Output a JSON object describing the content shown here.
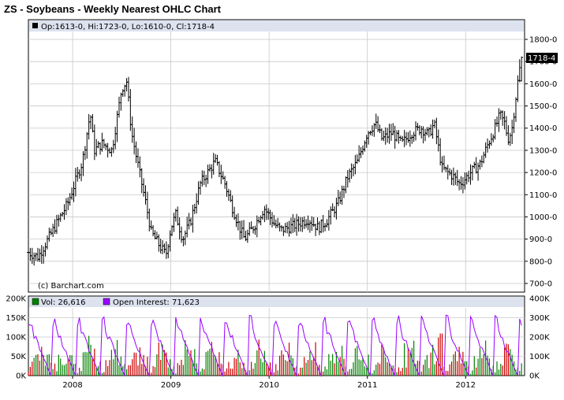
{
  "title": "ZS - Soybeans - Weekly Nearest OHLC Chart",
  "legend": {
    "ohlc": "Op:1613-0, Hi:1723-0, Lo:1610-0, Cl:1718-4",
    "volume": "Vol: 26,616",
    "open_interest": "Open Interest: 71,623"
  },
  "copyright": "(c) Barchart.com",
  "last_price_label": "1718-4",
  "colors": {
    "panel_border": "#000000",
    "header_bg": "#dde2ef",
    "grid": "#c8c8c8",
    "bars": "#000000",
    "volume_up": "#008000",
    "volume_down": "#cc0000",
    "open_interest": "#9900ff",
    "price_tag_bg": "#000000",
    "price_tag_text": "#ffffff"
  },
  "chart_data": [
    {
      "type": "ohlc",
      "title": "ZS - Soybeans - Weekly Nearest OHLC Chart",
      "ylim": [
        700,
        1800
      ],
      "y_ticks": [
        "700-0",
        "800-0",
        "900-0",
        "1000-0",
        "1100-0",
        "1200-0",
        "1300-0",
        "1400-0",
        "1500-0",
        "1600-0",
        "1700-0",
        "1800-0"
      ],
      "x_ticks": [
        "2008",
        "2009",
        "2010",
        "2011",
        "2012"
      ],
      "grid": true,
      "legend": "top-left",
      "last": {
        "open": 1613,
        "high": 1723,
        "low": 1610,
        "close": 1718.5
      },
      "close_anchors": [
        {
          "t": 2007.55,
          "v": 840
        },
        {
          "t": 2007.65,
          "v": 820
        },
        {
          "t": 2007.8,
          "v": 940
        },
        {
          "t": 2007.95,
          "v": 1060
        },
        {
          "t": 2008.1,
          "v": 1250
        },
        {
          "t": 2008.18,
          "v": 1470
        },
        {
          "t": 2008.22,
          "v": 1300
        },
        {
          "t": 2008.3,
          "v": 1330
        },
        {
          "t": 2008.4,
          "v": 1300
        },
        {
          "t": 2008.5,
          "v": 1580
        },
        {
          "t": 2008.55,
          "v": 1610
        },
        {
          "t": 2008.6,
          "v": 1380
        },
        {
          "t": 2008.68,
          "v": 1200
        },
        {
          "t": 2008.75,
          "v": 1050
        },
        {
          "t": 2008.8,
          "v": 930
        },
        {
          "t": 2008.9,
          "v": 860
        },
        {
          "t": 2008.95,
          "v": 830
        },
        {
          "t": 2009.0,
          "v": 950
        },
        {
          "t": 2009.05,
          "v": 1010
        },
        {
          "t": 2009.12,
          "v": 900
        },
        {
          "t": 2009.2,
          "v": 980
        },
        {
          "t": 2009.3,
          "v": 1150
        },
        {
          "t": 2009.45,
          "v": 1250
        },
        {
          "t": 2009.55,
          "v": 1150
        },
        {
          "t": 2009.62,
          "v": 1050
        },
        {
          "t": 2009.7,
          "v": 950
        },
        {
          "t": 2009.75,
          "v": 900
        },
        {
          "t": 2009.85,
          "v": 960
        },
        {
          "t": 2009.95,
          "v": 1040
        },
        {
          "t": 2010.05,
          "v": 970
        },
        {
          "t": 2010.12,
          "v": 940
        },
        {
          "t": 2010.25,
          "v": 960
        },
        {
          "t": 2010.4,
          "v": 990
        },
        {
          "t": 2010.5,
          "v": 950
        },
        {
          "t": 2010.58,
          "v": 980
        },
        {
          "t": 2010.7,
          "v": 1060
        },
        {
          "t": 2010.8,
          "v": 1180
        },
        {
          "t": 2010.9,
          "v": 1250
        },
        {
          "t": 2011.0,
          "v": 1380
        },
        {
          "t": 2011.08,
          "v": 1420
        },
        {
          "t": 2011.15,
          "v": 1350
        },
        {
          "t": 2011.25,
          "v": 1380
        },
        {
          "t": 2011.35,
          "v": 1330
        },
        {
          "t": 2011.45,
          "v": 1380
        },
        {
          "t": 2011.55,
          "v": 1400
        },
        {
          "t": 2011.62,
          "v": 1370
        },
        {
          "t": 2011.68,
          "v": 1420
        },
        {
          "t": 2011.72,
          "v": 1320
        },
        {
          "t": 2011.76,
          "v": 1220
        },
        {
          "t": 2011.82,
          "v": 1200
        },
        {
          "t": 2011.88,
          "v": 1180
        },
        {
          "t": 2011.93,
          "v": 1150
        },
        {
          "t": 2011.97,
          "v": 1160
        },
        {
          "t": 2012.05,
          "v": 1200
        },
        {
          "t": 2012.15,
          "v": 1240
        },
        {
          "t": 2012.22,
          "v": 1320
        },
        {
          "t": 2012.3,
          "v": 1400
        },
        {
          "t": 2012.35,
          "v": 1460
        },
        {
          "t": 2012.4,
          "v": 1420
        },
        {
          "t": 2012.43,
          "v": 1350
        },
        {
          "t": 2012.47,
          "v": 1390
        },
        {
          "t": 2012.5,
          "v": 1500
        },
        {
          "t": 2012.54,
          "v": 1640
        },
        {
          "t": 2012.57,
          "v": 1718.5
        }
      ]
    },
    {
      "type": "bar",
      "series": [
        {
          "name": "Vol",
          "last": 26616
        },
        {
          "name": "Open Interest",
          "last": 71623
        }
      ],
      "y_ticks_left": [
        "0K",
        "50K",
        "100K",
        "150K",
        "200K"
      ],
      "ylim_left": [
        0,
        200000
      ],
      "y_ticks_right": [
        "0K",
        "100K",
        "200K",
        "300K",
        "400K"
      ],
      "ylim_right": [
        0,
        400000
      ],
      "x_ticks": [
        "2008",
        "2009",
        "2010",
        "2011",
        "2012"
      ]
    }
  ]
}
